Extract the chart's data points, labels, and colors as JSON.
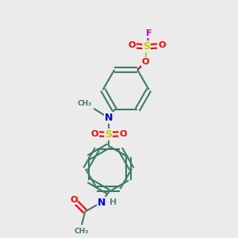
{
  "bg_color": "#ebebeb",
  "bond_color": "#3d7a6a",
  "colors": {
    "S": "#cccc00",
    "O": "#ff0000",
    "N": "#0000ee",
    "F": "#cc00cc",
    "H": "#5a8888",
    "C": "#3d7a6a"
  }
}
